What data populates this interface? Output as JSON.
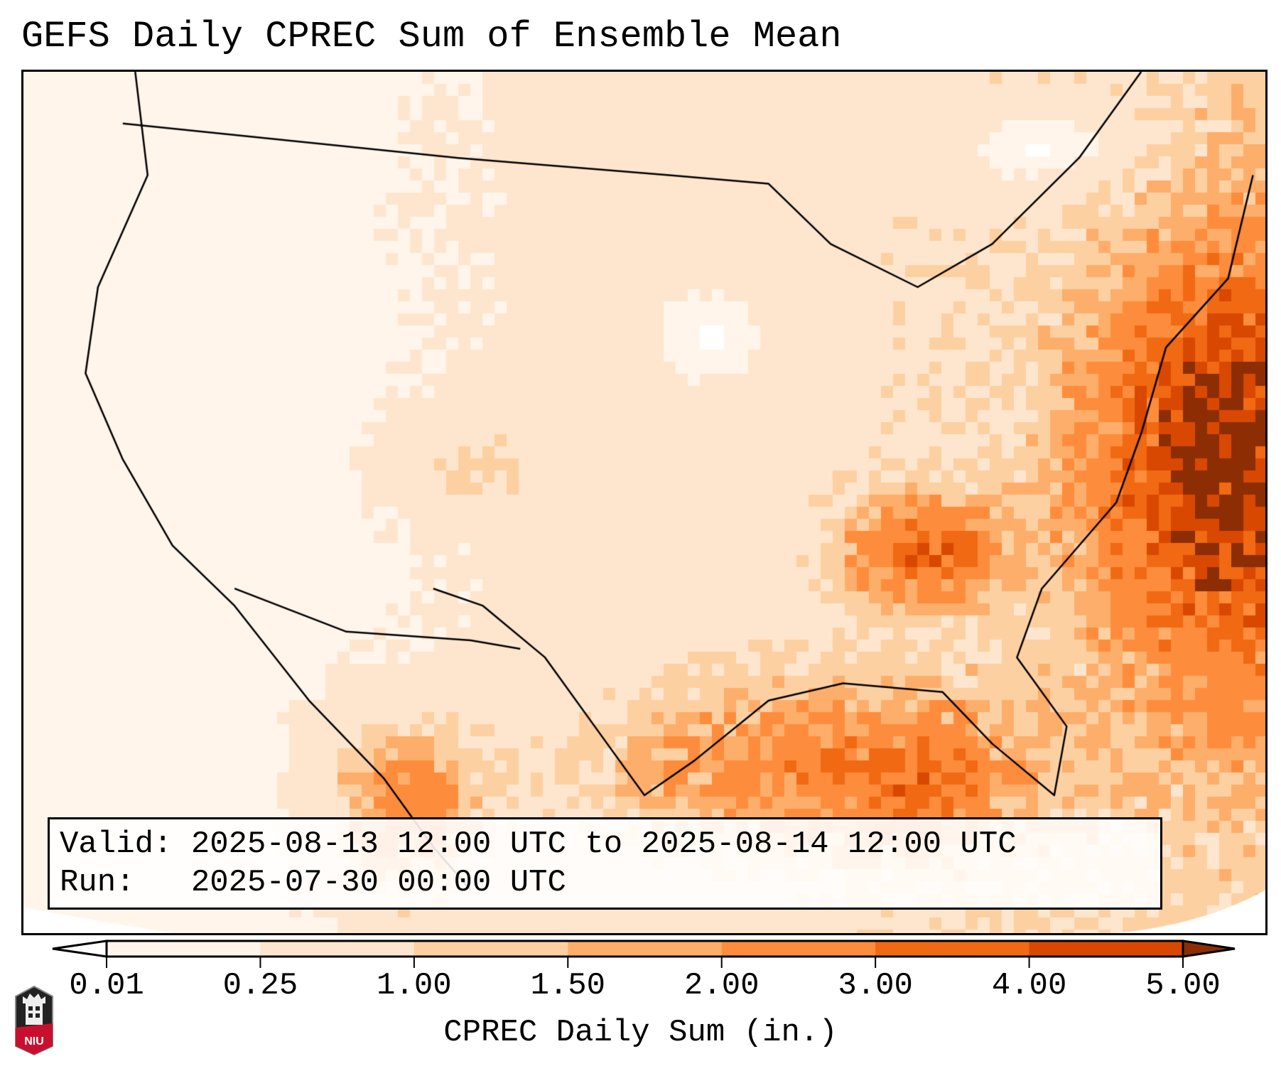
{
  "title": "GEFS Daily CPREC Sum of Ensemble Mean",
  "info": {
    "valid_label": "Valid:",
    "valid_value": "2025-08-13 12:00 UTC to 2025-08-14 12:00 UTC",
    "run_label": "Run:",
    "run_value": "2025-07-30 00:00 UTC"
  },
  "colorbar": {
    "label": "CPREC Daily Sum (in.)",
    "ticks": [
      "0.01",
      "0.25",
      "1.00",
      "1.50",
      "2.00",
      "3.00",
      "4.00",
      "5.00"
    ],
    "levels": [
      0.01,
      0.25,
      1.0,
      1.5,
      2.0,
      3.0,
      4.0,
      5.0
    ],
    "colors": [
      "#fff5eb",
      "#fee6ce",
      "#fdd0a2",
      "#fdae6b",
      "#fd8d3c",
      "#f16913",
      "#d94801",
      "#8c2d04"
    ],
    "under_color": "#ffffff",
    "over_color": "#8c2d04"
  },
  "logo": {
    "text": "NIU"
  }
}
